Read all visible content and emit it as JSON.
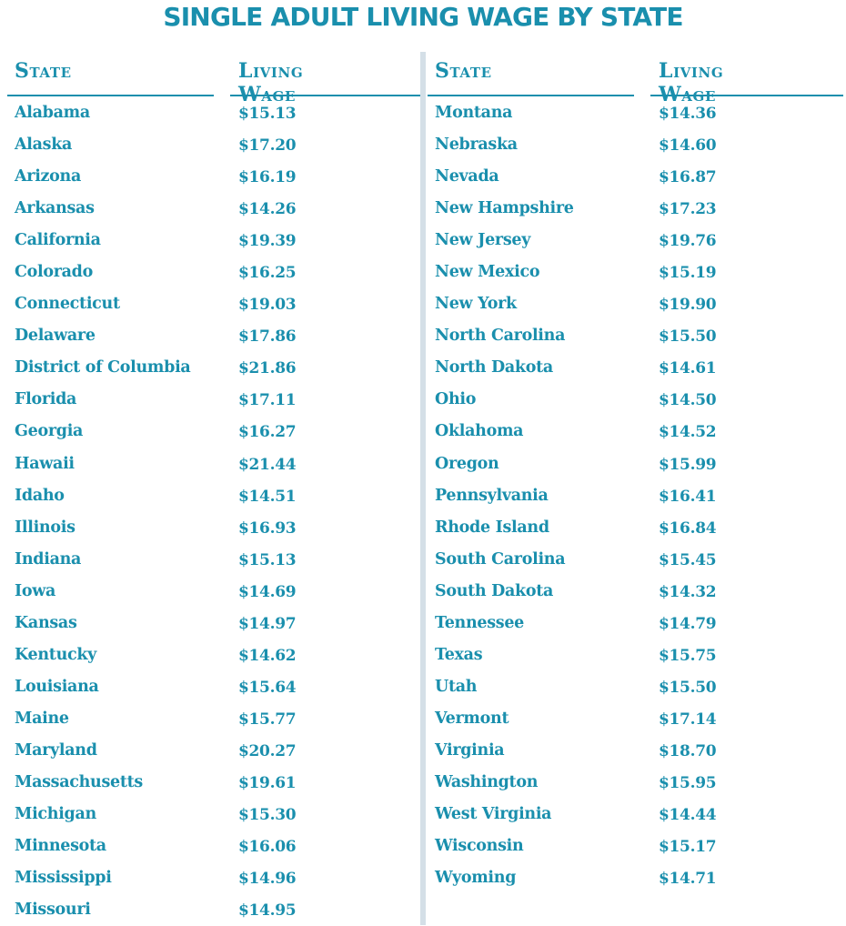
{
  "title": "SINGLE ADULT LIVING WAGE BY STATE",
  "header": {
    "state": "State",
    "wage": "Living Wage"
  },
  "colors": {
    "accent": "#1a8fad",
    "divider": "#d4dfe7"
  },
  "chart_data": {
    "type": "table",
    "title": "SINGLE ADULT LIVING WAGE BY STATE",
    "columns": [
      "State",
      "Living Wage"
    ],
    "left_rows": [
      {
        "state": "Alabama",
        "wage": "$15.13"
      },
      {
        "state": "Alaska",
        "wage": "$17.20"
      },
      {
        "state": "Arizona",
        "wage": "$16.19"
      },
      {
        "state": "Arkansas",
        "wage": "$14.26"
      },
      {
        "state": "California",
        "wage": "$19.39"
      },
      {
        "state": "Colorado",
        "wage": "$16.25"
      },
      {
        "state": "Connecticut",
        "wage": "$19.03"
      },
      {
        "state": "Delaware",
        "wage": "$17.86"
      },
      {
        "state": "District of Columbia",
        "wage": "$21.86"
      },
      {
        "state": "Florida",
        "wage": "$17.11"
      },
      {
        "state": "Georgia",
        "wage": "$16.27"
      },
      {
        "state": "Hawaii",
        "wage": "$21.44"
      },
      {
        "state": "Idaho",
        "wage": "$14.51"
      },
      {
        "state": "Illinois",
        "wage": "$16.93"
      },
      {
        "state": "Indiana",
        "wage": "$15.13"
      },
      {
        "state": "Iowa",
        "wage": "$14.69"
      },
      {
        "state": "Kansas",
        "wage": "$14.97"
      },
      {
        "state": "Kentucky",
        "wage": "$14.62"
      },
      {
        "state": "Louisiana",
        "wage": "$15.64"
      },
      {
        "state": "Maine",
        "wage": "$15.77"
      },
      {
        "state": "Maryland",
        "wage": "$20.27"
      },
      {
        "state": "Massachusetts",
        "wage": "$19.61"
      },
      {
        "state": "Michigan",
        "wage": "$15.30"
      },
      {
        "state": "Minnesota",
        "wage": "$16.06"
      },
      {
        "state": "Mississippi",
        "wage": "$14.96"
      },
      {
        "state": "Missouri",
        "wage": "$14.95"
      }
    ],
    "right_rows": [
      {
        "state": "Montana",
        "wage": "$14.36"
      },
      {
        "state": "Nebraska",
        "wage": "$14.60"
      },
      {
        "state": "Nevada",
        "wage": "$16.87"
      },
      {
        "state": "New Hampshire",
        "wage": "$17.23"
      },
      {
        "state": "New Jersey",
        "wage": "$19.76"
      },
      {
        "state": "New Mexico",
        "wage": "$15.19"
      },
      {
        "state": "New York",
        "wage": "$19.90"
      },
      {
        "state": "North Carolina",
        "wage": "$15.50"
      },
      {
        "state": "North Dakota",
        "wage": "$14.61"
      },
      {
        "state": "Ohio",
        "wage": "$14.50"
      },
      {
        "state": "Oklahoma",
        "wage": "$14.52"
      },
      {
        "state": "Oregon",
        "wage": "$15.99"
      },
      {
        "state": "Pennsylvania",
        "wage": "$16.41"
      },
      {
        "state": "Rhode Island",
        "wage": "$16.84"
      },
      {
        "state": "South Carolina",
        "wage": "$15.45"
      },
      {
        "state": "South Dakota",
        "wage": "$14.32"
      },
      {
        "state": "Tennessee",
        "wage": "$14.79"
      },
      {
        "state": "Texas",
        "wage": "$15.75"
      },
      {
        "state": "Utah",
        "wage": "$15.50"
      },
      {
        "state": "Vermont",
        "wage": "$17.14"
      },
      {
        "state": "Virginia",
        "wage": "$18.70"
      },
      {
        "state": "Washington",
        "wage": "$15.95"
      },
      {
        "state": "West Virginia",
        "wage": "$14.44"
      },
      {
        "state": "Wisconsin",
        "wage": "$15.17"
      },
      {
        "state": "Wyoming",
        "wage": "$14.71"
      }
    ]
  }
}
